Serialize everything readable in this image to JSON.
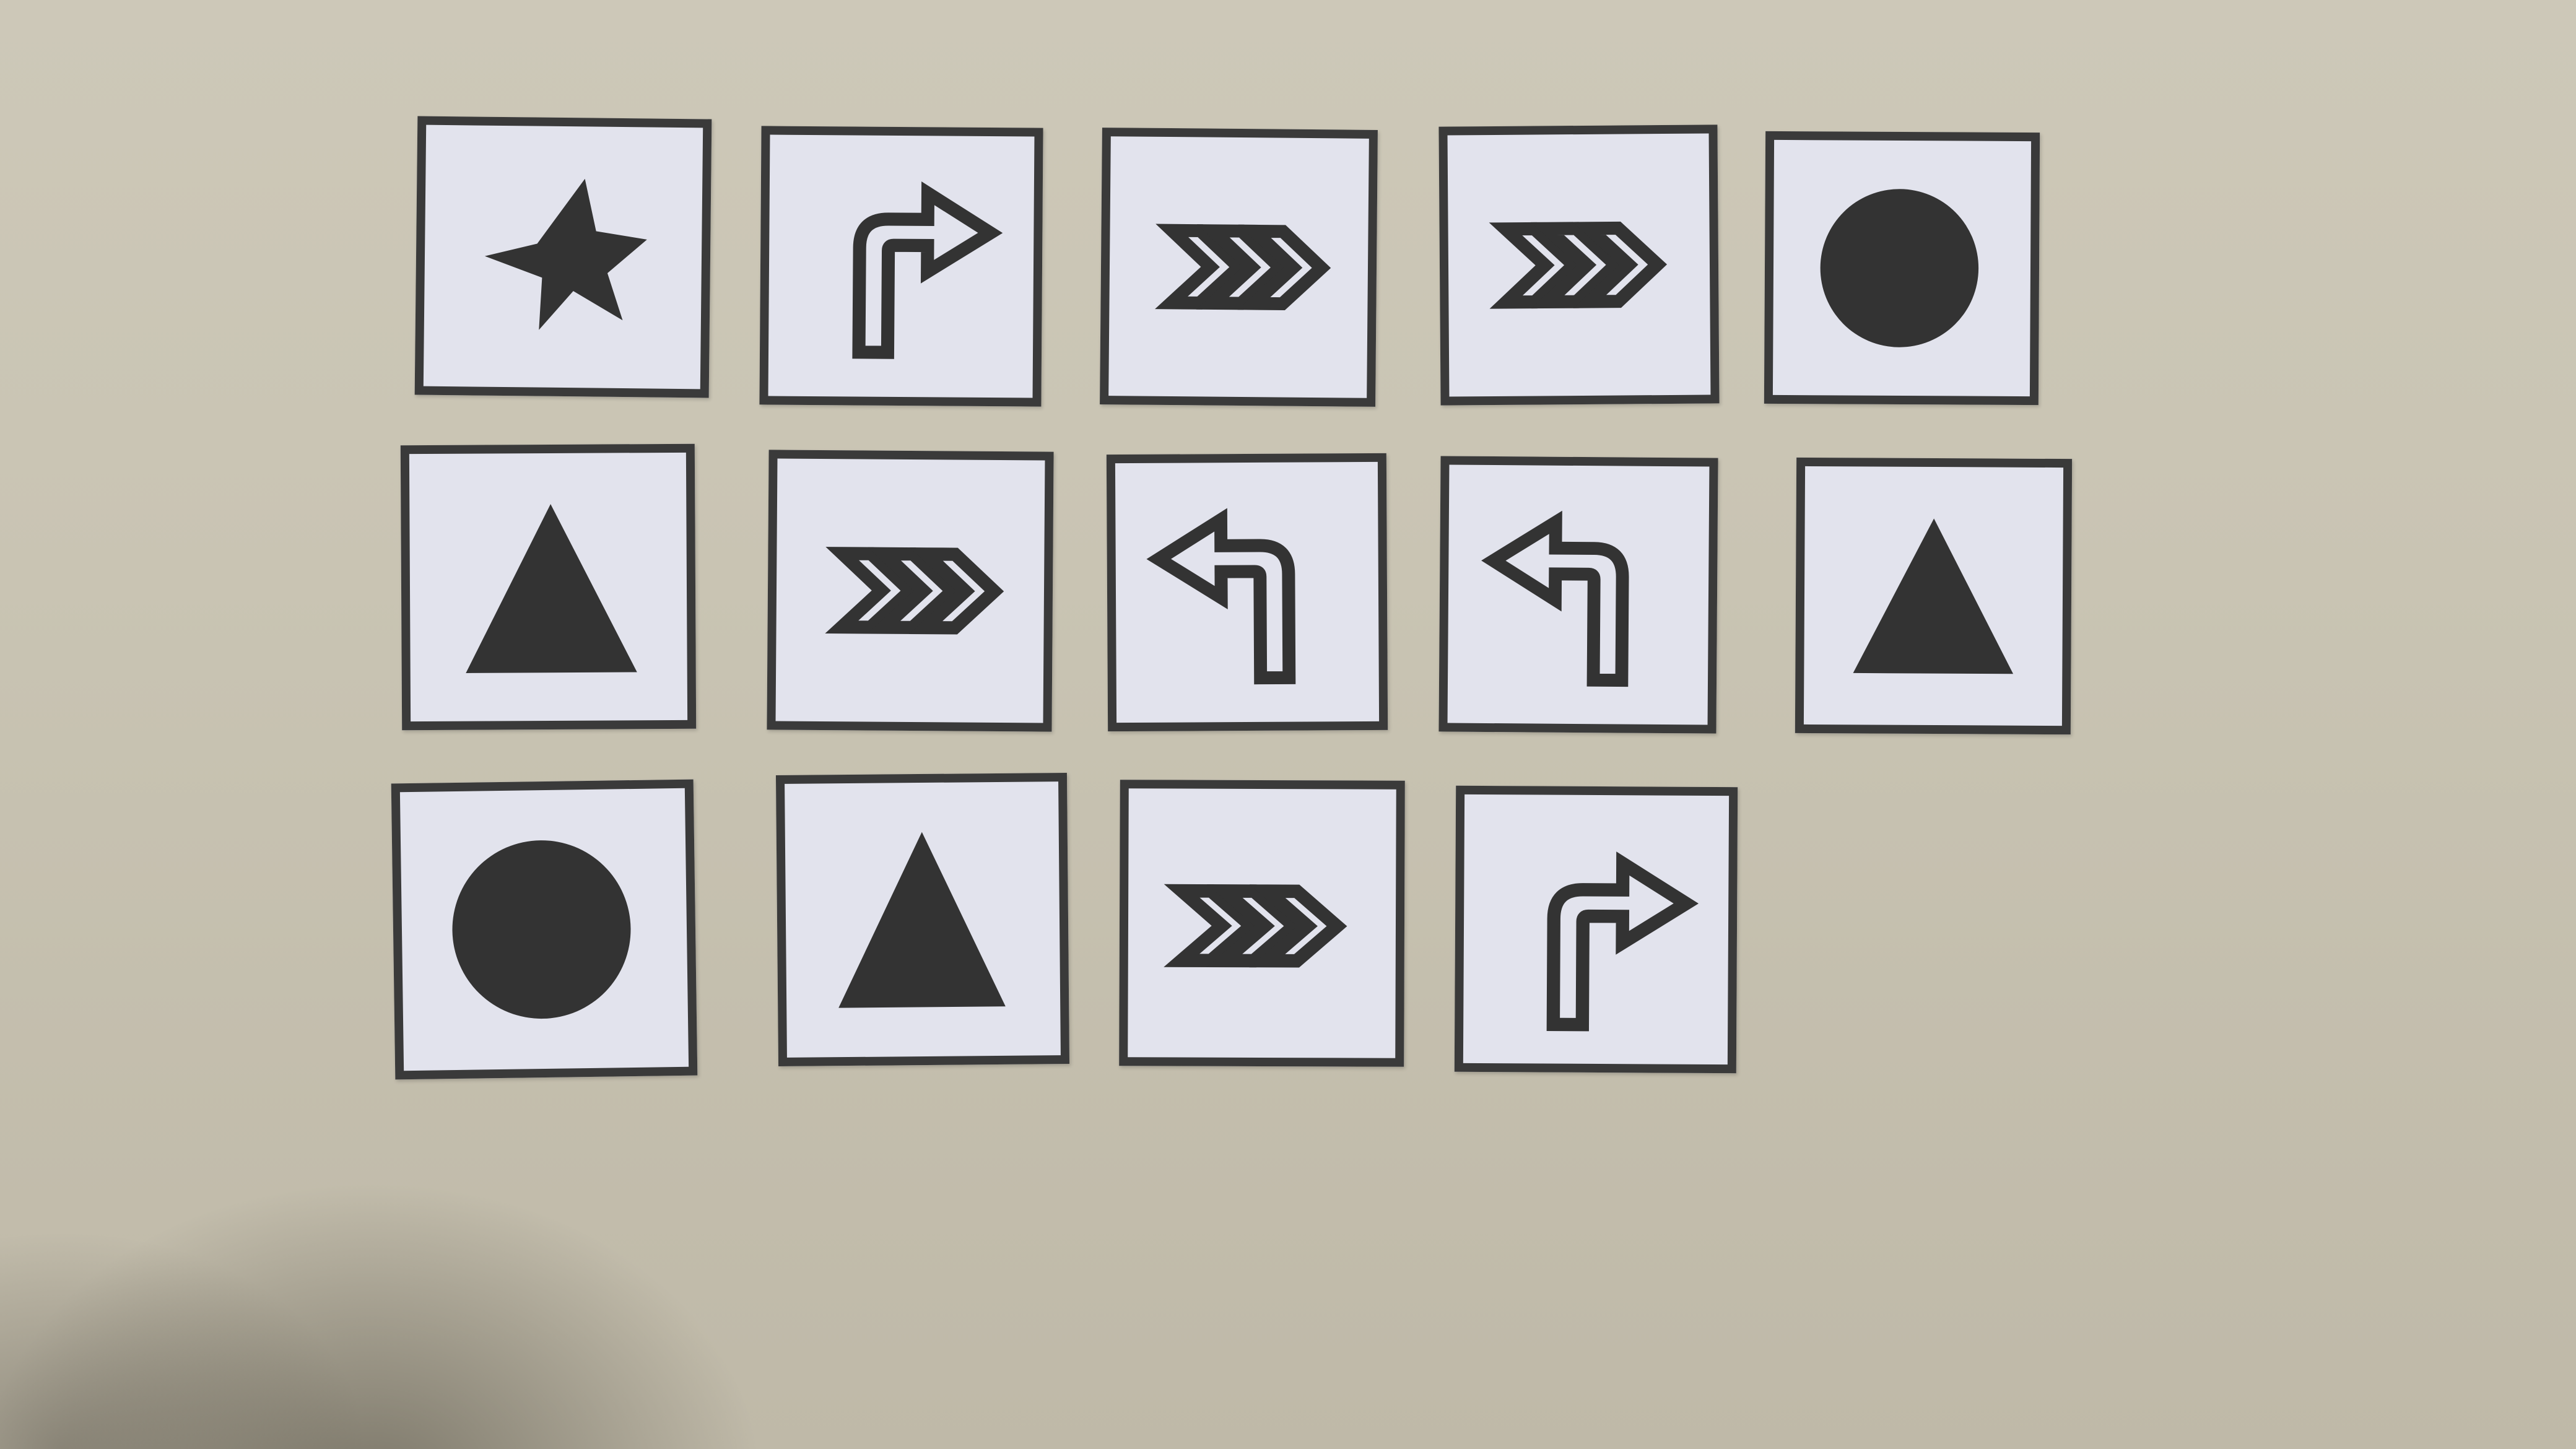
{
  "scene": {
    "description_free": true,
    "background_color": "#c9c4b3",
    "card_color": "#e2e3ed",
    "border_color": "#3a3a3a",
    "symbol_color": "#333333"
  },
  "cards": [
    {
      "row": 1,
      "col": 1,
      "symbol": "star-icon"
    },
    {
      "row": 1,
      "col": 2,
      "symbol": "turn-right-arrow-icon"
    },
    {
      "row": 1,
      "col": 3,
      "symbol": "double-chevron-right-icon"
    },
    {
      "row": 1,
      "col": 4,
      "symbol": "double-chevron-right-icon"
    },
    {
      "row": 1,
      "col": 5,
      "symbol": "circle-icon"
    },
    {
      "row": 2,
      "col": 1,
      "symbol": "triangle-icon"
    },
    {
      "row": 2,
      "col": 2,
      "symbol": "double-chevron-right-icon"
    },
    {
      "row": 2,
      "col": 3,
      "symbol": "turn-left-arrow-icon"
    },
    {
      "row": 2,
      "col": 4,
      "symbol": "turn-left-arrow-icon"
    },
    {
      "row": 2,
      "col": 5,
      "symbol": "triangle-icon"
    },
    {
      "row": 3,
      "col": 1,
      "symbol": "circle-icon"
    },
    {
      "row": 3,
      "col": 2,
      "symbol": "triangle-icon"
    },
    {
      "row": 3,
      "col": 3,
      "symbol": "double-chevron-right-icon"
    },
    {
      "row": 3,
      "col": 4,
      "symbol": "turn-right-arrow-icon"
    }
  ]
}
